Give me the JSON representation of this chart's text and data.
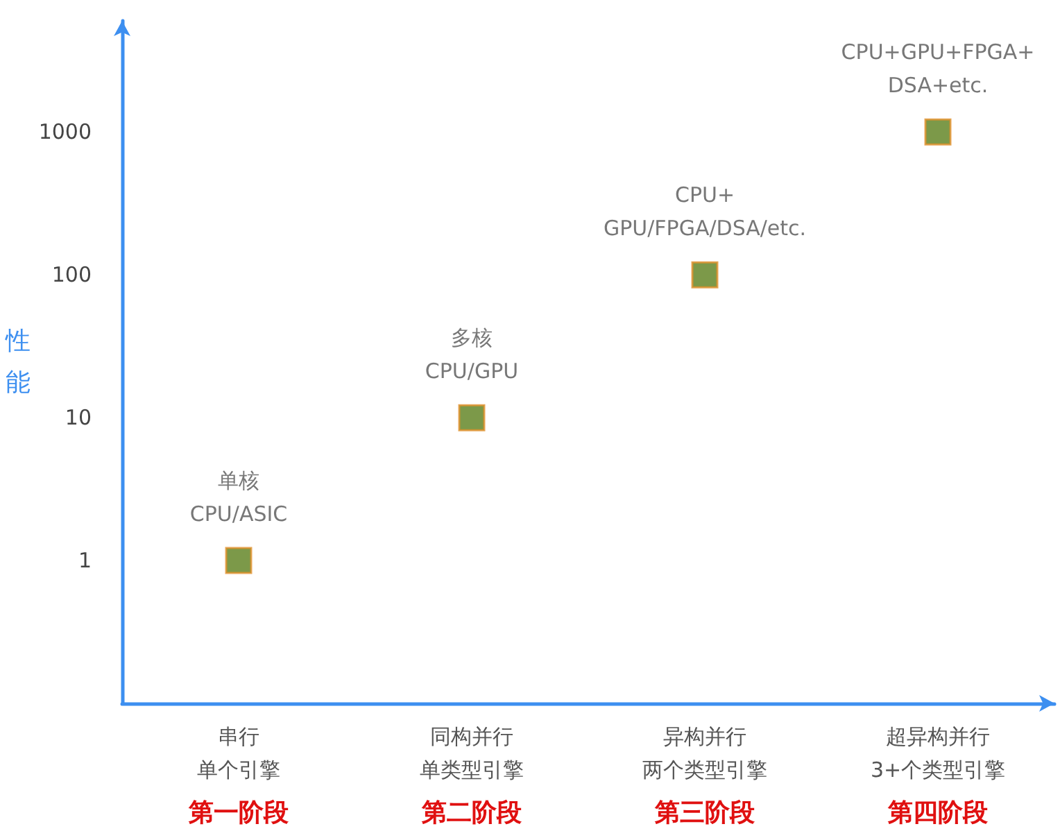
{
  "chart_data": {
    "type": "scatter",
    "ylabel": "性能",
    "categories": [
      "串行",
      "同构并行",
      "异构并行",
      "超异构并行"
    ],
    "series": [
      {
        "color": "#5b7f1c",
        "values": [
          1,
          10,
          100,
          1000
        ],
        "value_labels": [
          "单核\nCPU/ASIC",
          "多核\nCPU/GPU",
          "CPU+\nGPU/FPGA/DSA/etc.",
          "CPU+GPU+FPGA+\nDSA+etc."
        ]
      }
    ],
    "annotations": [
      "单个引擎",
      "第一阶段",
      "单类型引擎",
      "第二阶段",
      "两个类型引擎",
      "第三阶段",
      "3+个类型引擎",
      "第四阶段"
    ],
    "log": "y",
    "ylim": [
      0.1,
      6000
    ],
    "yticks": [
      1,
      10,
      100,
      1000
    ],
    "grid": false,
    "marker": "square"
  }
}
